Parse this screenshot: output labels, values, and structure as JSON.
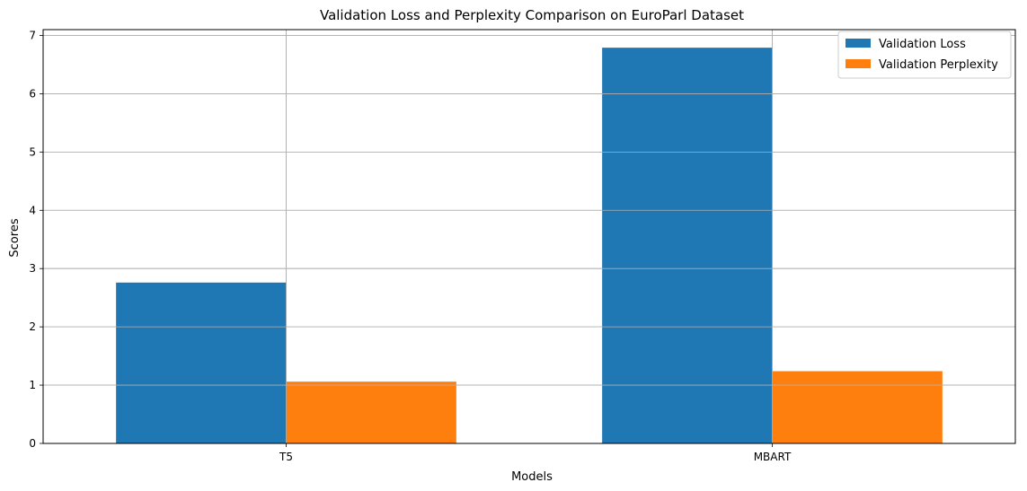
{
  "chart_data": {
    "type": "bar",
    "title": "Validation Loss and Perplexity Comparison on EuroParl Dataset",
    "xlabel": "Models",
    "ylabel": "Scores",
    "categories": [
      "T5",
      "MBART"
    ],
    "series": [
      {
        "name": "Validation Loss",
        "values": [
          2.76,
          6.79
        ],
        "color": "#1f77b4"
      },
      {
        "name": "Validation Perplexity",
        "values": [
          1.06,
          1.24
        ],
        "color": "#ff7f0e"
      }
    ],
    "ylim": [
      0,
      7.1
    ],
    "yticks": [
      0,
      1,
      2,
      3,
      4,
      5,
      6,
      7
    ],
    "grid": true,
    "legend_position": "top-right"
  }
}
